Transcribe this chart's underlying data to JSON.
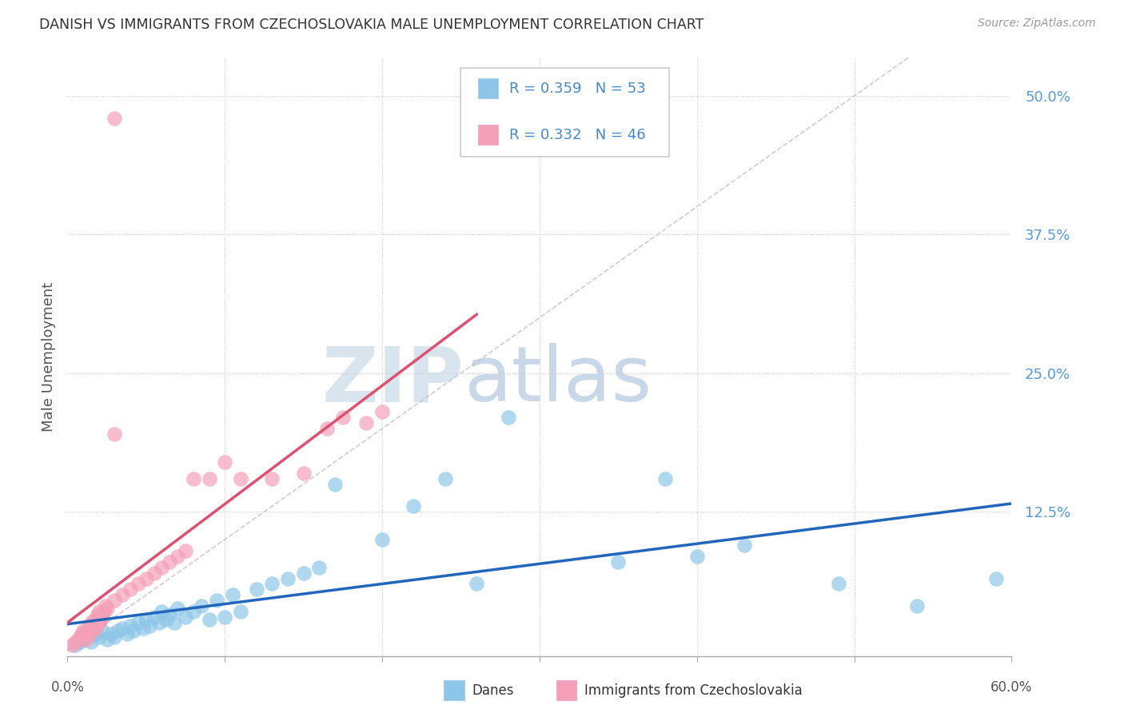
{
  "title": "DANISH VS IMMIGRANTS FROM CZECHOSLOVAKIA MALE UNEMPLOYMENT CORRELATION CHART",
  "source": "Source: ZipAtlas.com",
  "ylabel": "Male Unemployment",
  "yticks": [
    0.0,
    0.125,
    0.25,
    0.375,
    0.5
  ],
  "ytick_labels": [
    "",
    "12.5%",
    "25.0%",
    "37.5%",
    "50.0%"
  ],
  "xlim": [
    0.0,
    0.6
  ],
  "ylim": [
    -0.005,
    0.535
  ],
  "watermark_zip": "ZIP",
  "watermark_atlas": "atlas",
  "legend_r1": "R = 0.359",
  "legend_n1": "N = 53",
  "legend_r2": "R = 0.332",
  "legend_n2": "N = 46",
  "blue_color": "#8DC6E8",
  "pink_color": "#F4A0B8",
  "trend_blue_color": "#2266BB",
  "trend_pink_color": "#E05070",
  "diag_color": "#CCBBCC",
  "legend_text_color": "#4488CC",
  "background_color": "#FFFFFF",
  "blue_x": [
    0.005,
    0.008,
    0.01,
    0.012,
    0.015,
    0.018,
    0.02,
    0.022,
    0.025,
    0.028,
    0.03,
    0.032,
    0.035,
    0.038,
    0.04,
    0.042,
    0.045,
    0.048,
    0.05,
    0.052,
    0.055,
    0.058,
    0.06,
    0.063,
    0.065,
    0.068,
    0.07,
    0.075,
    0.08,
    0.085,
    0.09,
    0.095,
    0.1,
    0.105,
    0.11,
    0.12,
    0.13,
    0.14,
    0.15,
    0.16,
    0.17,
    0.2,
    0.22,
    0.24,
    0.26,
    0.28,
    0.35,
    0.38,
    0.4,
    0.43,
    0.49,
    0.54,
    0.59
  ],
  "blue_y": [
    0.005,
    0.008,
    0.01,
    0.012,
    0.008,
    0.015,
    0.012,
    0.018,
    0.01,
    0.015,
    0.012,
    0.018,
    0.02,
    0.015,
    0.022,
    0.018,
    0.025,
    0.02,
    0.028,
    0.022,
    0.03,
    0.025,
    0.035,
    0.028,
    0.032,
    0.025,
    0.038,
    0.03,
    0.035,
    0.04,
    0.028,
    0.045,
    0.03,
    0.05,
    0.035,
    0.055,
    0.06,
    0.065,
    0.07,
    0.075,
    0.15,
    0.1,
    0.13,
    0.155,
    0.06,
    0.21,
    0.08,
    0.155,
    0.085,
    0.095,
    0.06,
    0.04,
    0.065
  ],
  "pink_x": [
    0.003,
    0.005,
    0.007,
    0.008,
    0.009,
    0.01,
    0.01,
    0.011,
    0.012,
    0.013,
    0.014,
    0.015,
    0.015,
    0.016,
    0.017,
    0.018,
    0.019,
    0.02,
    0.02,
    0.021,
    0.022,
    0.023,
    0.024,
    0.025,
    0.03,
    0.035,
    0.04,
    0.045,
    0.05,
    0.055,
    0.06,
    0.065,
    0.07,
    0.075,
    0.08,
    0.09,
    0.1,
    0.11,
    0.13,
    0.15,
    0.165,
    0.175,
    0.19,
    0.2,
    0.03,
    0.03
  ],
  "pink_y": [
    0.005,
    0.008,
    0.01,
    0.012,
    0.015,
    0.012,
    0.018,
    0.015,
    0.01,
    0.02,
    0.015,
    0.025,
    0.018,
    0.022,
    0.028,
    0.02,
    0.032,
    0.025,
    0.035,
    0.028,
    0.03,
    0.035,
    0.04,
    0.038,
    0.045,
    0.05,
    0.055,
    0.06,
    0.065,
    0.07,
    0.075,
    0.08,
    0.085,
    0.09,
    0.155,
    0.155,
    0.17,
    0.155,
    0.155,
    0.16,
    0.2,
    0.21,
    0.205,
    0.215,
    0.195,
    0.48
  ]
}
